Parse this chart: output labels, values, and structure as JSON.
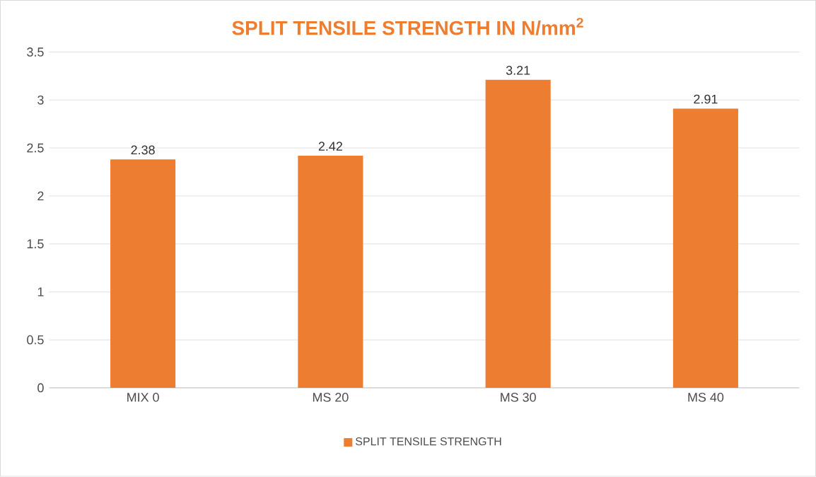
{
  "chart_data": {
    "type": "bar",
    "title": "SPLIT TENSILE STRENGTH IN N/mm$^{2}$",
    "categories": [
      "MIX 0",
      "MS 20",
      "MS 30",
      "MS 40"
    ],
    "series": [
      {
        "name": "SPLIT TENSILE STRENGTH",
        "color": "#ed7d31",
        "values": [
          2.38,
          2.42,
          3.21,
          2.91
        ]
      }
    ],
    "ylim": [
      0,
      3.5
    ],
    "yticks": [
      0,
      0.5,
      1,
      1.5,
      2,
      2.5,
      3,
      3.5
    ],
    "grid": "y",
    "legend": "bottom",
    "data_labels": true
  }
}
